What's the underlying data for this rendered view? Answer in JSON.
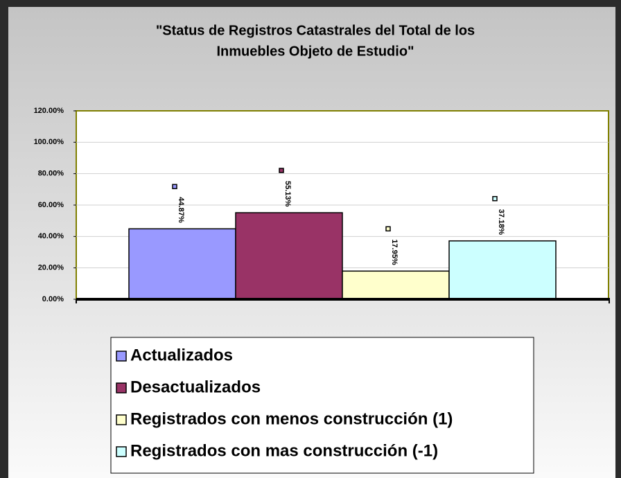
{
  "chart_data": {
    "type": "bar",
    "title": [
      "\"Status de Registros Catastrales del Total de los",
      "Inmuebles Objeto de Estudio\""
    ],
    "series": [
      {
        "name": "Actualizados",
        "color": "#9999ff",
        "values": [
          44.87
        ],
        "value_labels": [
          "44.87%"
        ]
      },
      {
        "name": "Desactualizados",
        "color": "#993366",
        "values": [
          55.13
        ],
        "value_labels": [
          "55.13%"
        ]
      },
      {
        "name": "Registrados con menos construcción (1)",
        "color": "#ffffcc",
        "values": [
          17.95
        ],
        "value_labels": [
          "17.95%"
        ]
      },
      {
        "name": "Registrados con mas construcción (-1)",
        "color": "#ccffff",
        "values": [
          37.18
        ],
        "value_labels": [
          "37.18%"
        ]
      }
    ],
    "ylim": [
      0,
      120
    ],
    "yticks": [
      {
        "value": 0,
        "label": "0.00%"
      },
      {
        "value": 20,
        "label": "20.00%"
      },
      {
        "value": 40,
        "label": "40.00%"
      },
      {
        "value": 60,
        "label": "60.00%"
      },
      {
        "value": 80,
        "label": "80.00%"
      },
      {
        "value": 100,
        "label": "100.00%"
      },
      {
        "value": 120,
        "label": "120.00%"
      }
    ],
    "grid": true
  }
}
